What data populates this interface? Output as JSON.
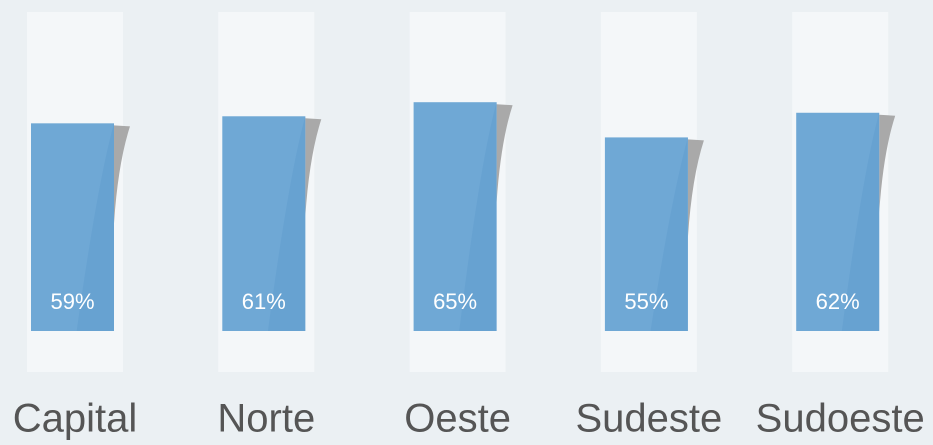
{
  "chart_data": {
    "type": "bar",
    "categories": [
      "Capital",
      "Norte",
      "Oeste",
      "Sudeste",
      "Sudoeste"
    ],
    "values": [
      59,
      61,
      65,
      55,
      62
    ],
    "value_labels": [
      "59%",
      "61%",
      "65%",
      "55%",
      "62%"
    ],
    "color": "#6fa8d5"
  }
}
